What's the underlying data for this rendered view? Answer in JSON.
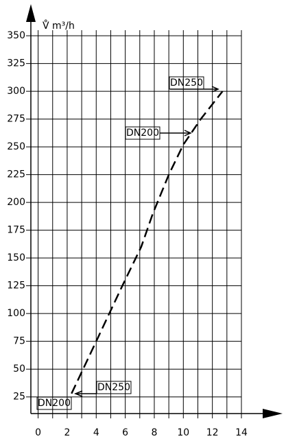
{
  "chart_data": {
    "type": "line",
    "y_label": "V̊ m³/h",
    "x": [
      2.3,
      4.0,
      5.8,
      7.1,
      7.9,
      9.0,
      10.0,
      11.2,
      12.7
    ],
    "values": [
      28,
      75,
      125,
      160,
      190,
      225,
      252,
      275,
      300
    ],
    "color": "#000000",
    "dashed": true,
    "xlim": [
      -0.5,
      14
    ],
    "ylim": [
      10,
      355
    ],
    "xticks": [
      0,
      2,
      4,
      6,
      8,
      10,
      12,
      14
    ],
    "xminorticks": [
      1,
      3,
      5,
      7,
      9,
      11,
      13
    ],
    "yticks": [
      25,
      50,
      75,
      100,
      125,
      150,
      175,
      200,
      225,
      250,
      275,
      300,
      325,
      350
    ],
    "grid": true,
    "annotations": [
      "DN250",
      "DN200",
      "DN250",
      "DN200"
    ]
  }
}
